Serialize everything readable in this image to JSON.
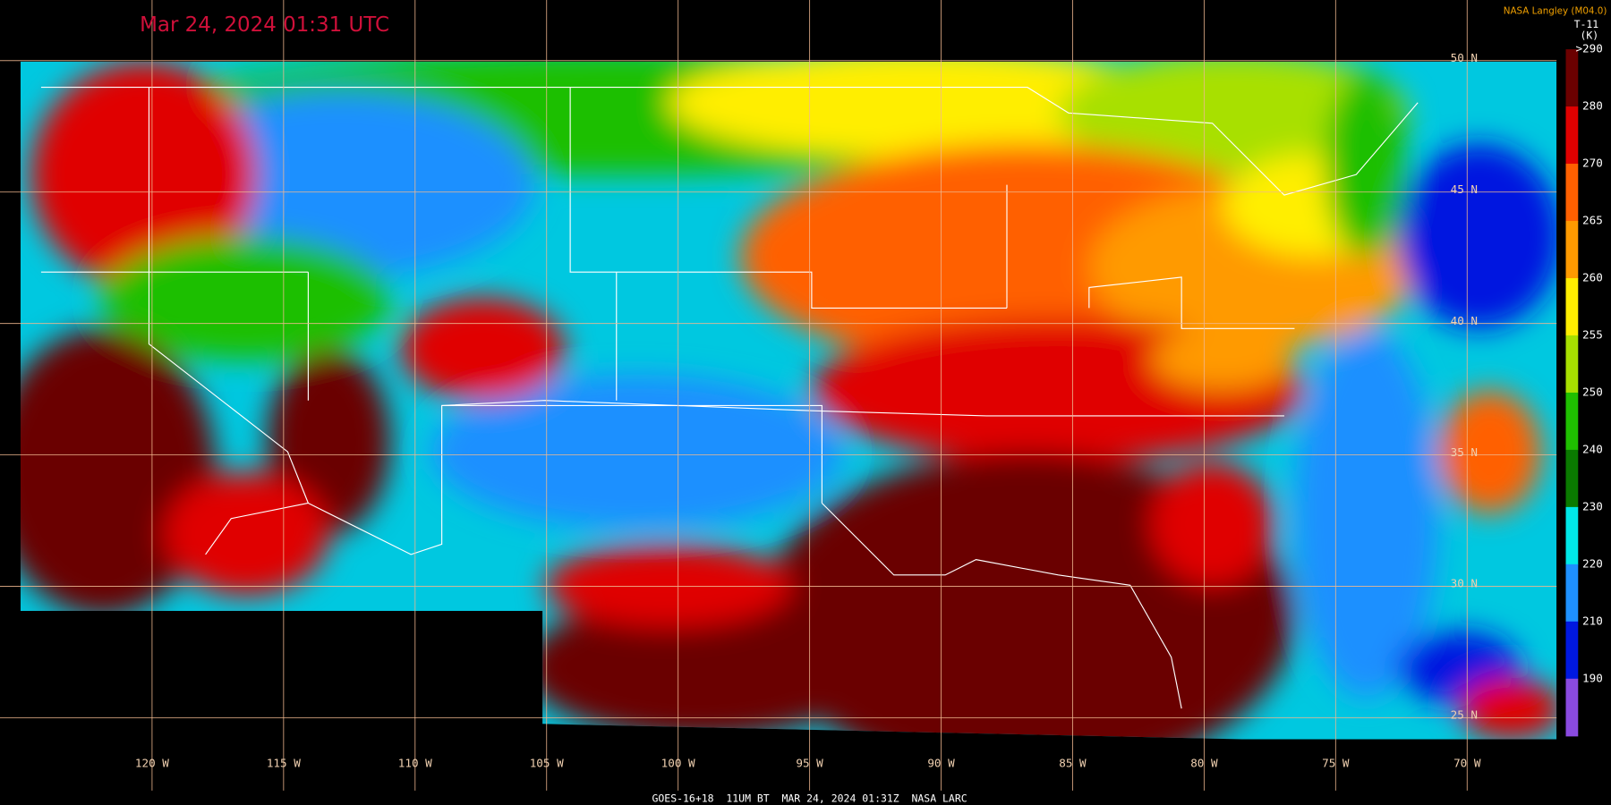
{
  "header": {
    "title": "Mar 24, 2024 01:31 UTC",
    "credit": "NASA Langley (M04.0)"
  },
  "colorbar": {
    "product": "T-11",
    "unit": "(K)",
    "labels": [
      ">290",
      "280",
      "270",
      "265",
      "260",
      "255",
      "250",
      "240",
      "230",
      "220",
      "210",
      "190"
    ],
    "colors": [
      "#6b0000",
      "#e00000",
      "#ff6000",
      "#ff9a00",
      "#ffee00",
      "#a8e000",
      "#1fbf00",
      "#0a7a00",
      "#00e8e8",
      "#1e90ff",
      "#0018e0",
      "#8a4ae0"
    ]
  },
  "latitude_labels": [
    "50 N",
    "45 N",
    "40 N",
    "35 N",
    "30 N",
    "25 N"
  ],
  "longitude_labels": [
    "120 W",
    "115 W",
    "110 W",
    "105 W",
    "100 W",
    "95 W",
    "90 W",
    "85 W",
    "80 W",
    "75 W",
    "70 W"
  ],
  "footer": "GOES-16+18  11UM BT  MAR 24, 2024 01:31Z  NASA LARC"
}
